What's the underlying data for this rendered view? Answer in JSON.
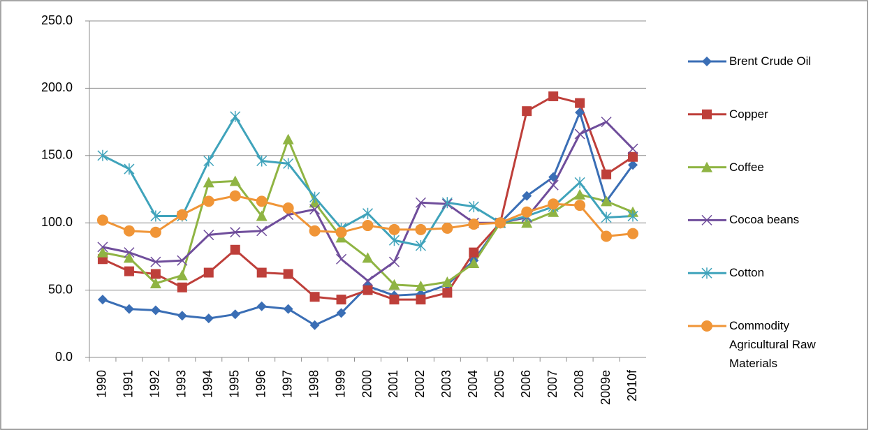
{
  "chart_data": {
    "type": "line",
    "categories": [
      "1990",
      "1991",
      "1992",
      "1993",
      "1994",
      "1995",
      "1996",
      "1997",
      "1998",
      "1999",
      "2000",
      "2001",
      "2002",
      "2003",
      "2004",
      "2005",
      "2006",
      "2007",
      "2008",
      "2009e",
      "2010f"
    ],
    "series": [
      {
        "name": "Brent Crude Oil",
        "color": "#3a6eb5",
        "marker": "diamond",
        "values": [
          43,
          36,
          35,
          31,
          29,
          32,
          38,
          36,
          24,
          33,
          53,
          46,
          47,
          54,
          72,
          100,
          120,
          134,
          182,
          116,
          143
        ]
      },
      {
        "name": "Copper",
        "color": "#be3f3a",
        "marker": "square",
        "values": [
          73,
          64,
          62,
          52,
          63,
          80,
          63,
          62,
          45,
          43,
          50,
          43,
          43,
          48,
          78,
          100,
          183,
          194,
          189,
          136,
          149
        ]
      },
      {
        "name": "Coffee",
        "color": "#8fb443",
        "marker": "triangle",
        "values": [
          78,
          74,
          55,
          61,
          130,
          131,
          105,
          162,
          115,
          89,
          74,
          54,
          53,
          56,
          70,
          100,
          100,
          108,
          121,
          116,
          108
        ]
      },
      {
        "name": "Cocoa beans",
        "color": "#6f4d9b",
        "marker": "x",
        "values": [
          82,
          78,
          71,
          72,
          91,
          93,
          94,
          106,
          110,
          73,
          57,
          71,
          115,
          114,
          100,
          100,
          104,
          128,
          166,
          175,
          155
        ]
      },
      {
        "name": "Cotton",
        "color": "#3fa3bb",
        "marker": "star",
        "values": [
          150,
          140,
          105,
          105,
          146,
          179,
          146,
          144,
          119,
          96,
          107,
          87,
          83,
          115,
          112,
          100,
          105,
          112,
          130,
          104,
          105
        ]
      },
      {
        "name": "Commodity Agricultural Raw Materials",
        "color": "#f09537",
        "marker": "circle",
        "values": [
          102,
          94,
          93,
          106,
          116,
          120,
          116,
          111,
          94,
          93,
          98,
          95,
          95,
          96,
          99,
          100,
          108,
          114,
          113,
          90,
          92
        ]
      }
    ],
    "ylim": [
      0,
      250
    ],
    "yticks": [
      {
        "value": 0,
        "label": "0.0"
      },
      {
        "value": 50,
        "label": "50.0"
      },
      {
        "value": 100,
        "label": "100.0"
      },
      {
        "value": 150,
        "label": "150.0"
      },
      {
        "value": 200,
        "label": "200.0"
      },
      {
        "value": 250,
        "label": "250.0"
      }
    ],
    "grid": true,
    "legend": "right"
  }
}
